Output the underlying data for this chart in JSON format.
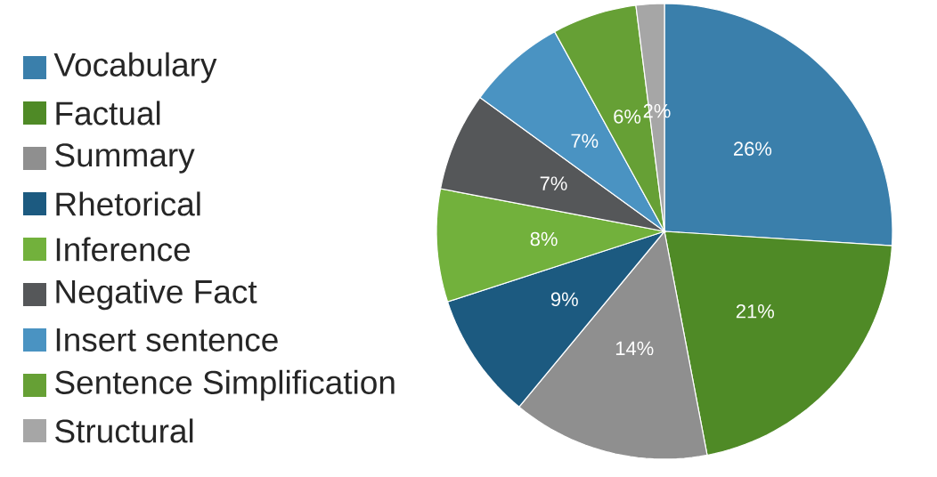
{
  "chart_data": {
    "type": "pie",
    "categories": [
      "Vocabulary",
      "Factual",
      "Summary",
      "Rhetorical",
      "Inference",
      "Negative Fact",
      "Insert sentence",
      "Sentence Simplification",
      "Structural"
    ],
    "values": [
      26,
      21,
      14,
      9,
      8,
      7,
      7,
      6,
      2
    ],
    "value_labels": [
      "26%",
      "21%",
      "14%",
      "9%",
      "8%",
      "7%",
      "7%",
      "6%",
      "2%"
    ],
    "colors": [
      "#3a7fab",
      "#4f8a26",
      "#8f8f8f",
      "#1c5a80",
      "#72b13c",
      "#555759",
      "#4a93c2",
      "#66a035",
      "#a6a6a6"
    ],
    "legend": "left"
  }
}
